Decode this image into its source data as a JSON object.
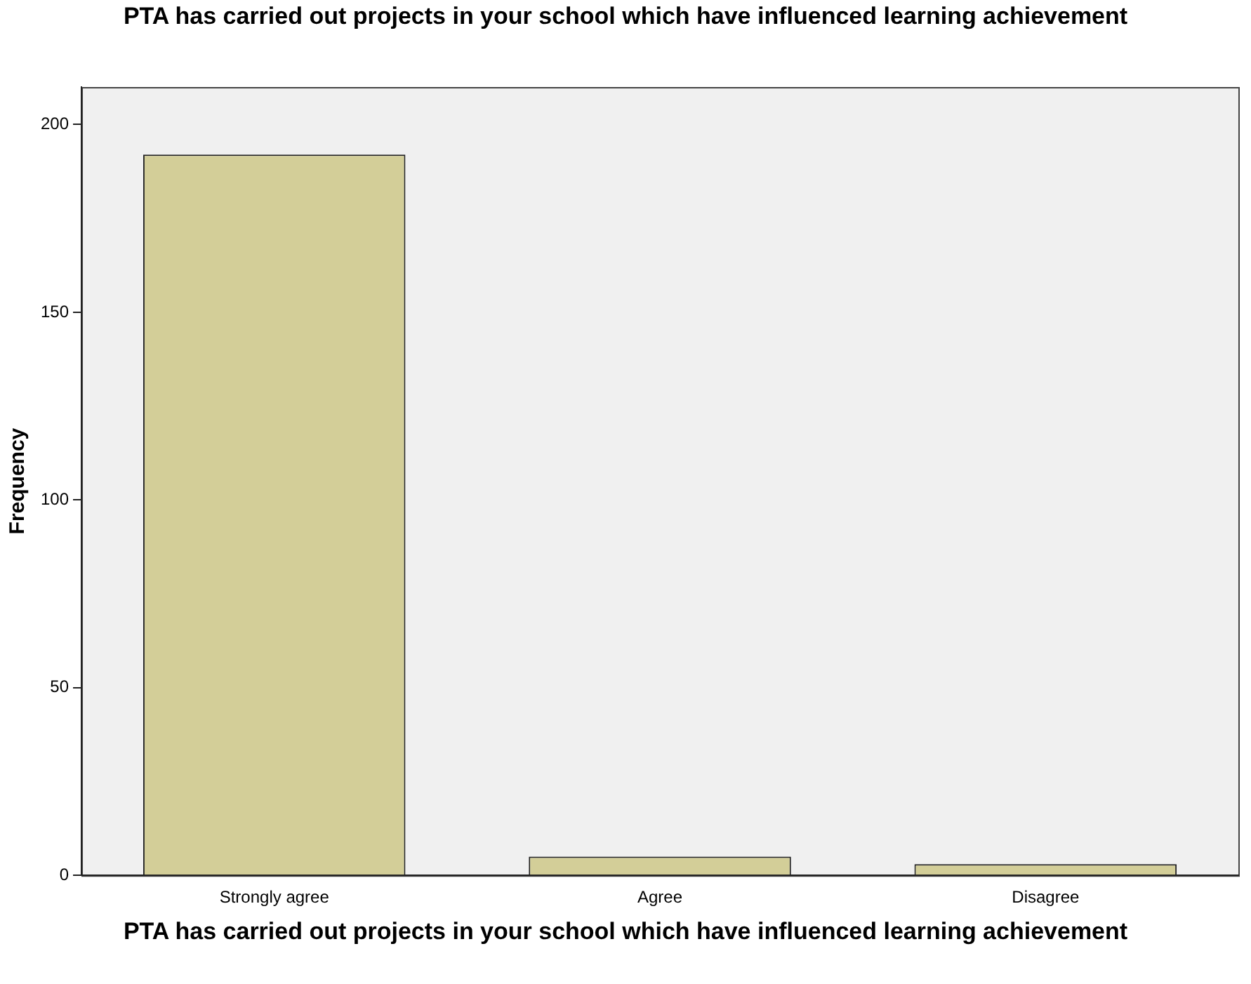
{
  "chart_data": {
    "type": "bar",
    "title": "PTA has carried out projects in your school which have influenced learning achievement",
    "xlabel": "PTA has carried out projects in your school which have influenced learning achievement",
    "ylabel": "Frequency",
    "categories": [
      "Strongly agree",
      "Agree",
      "Disagree"
    ],
    "values": [
      192,
      5,
      3
    ],
    "color": "#d3ce98",
    "ylim": [
      0,
      210
    ],
    "yticks": [
      0,
      50,
      100,
      150,
      200
    ],
    "grid": false,
    "legend": false
  }
}
